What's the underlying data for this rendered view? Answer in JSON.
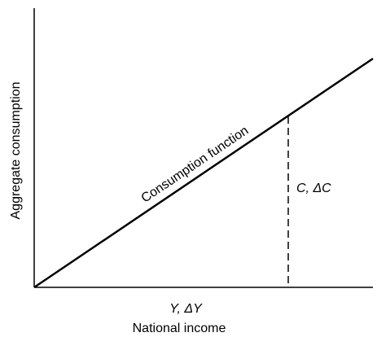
{
  "y_axis_label": "Aggregate consumption",
  "x_axis_label": "National income",
  "curve_label": "Consumption function",
  "vertical_label": "C, ΔC",
  "horizontal_label": "Y, ΔY"
}
